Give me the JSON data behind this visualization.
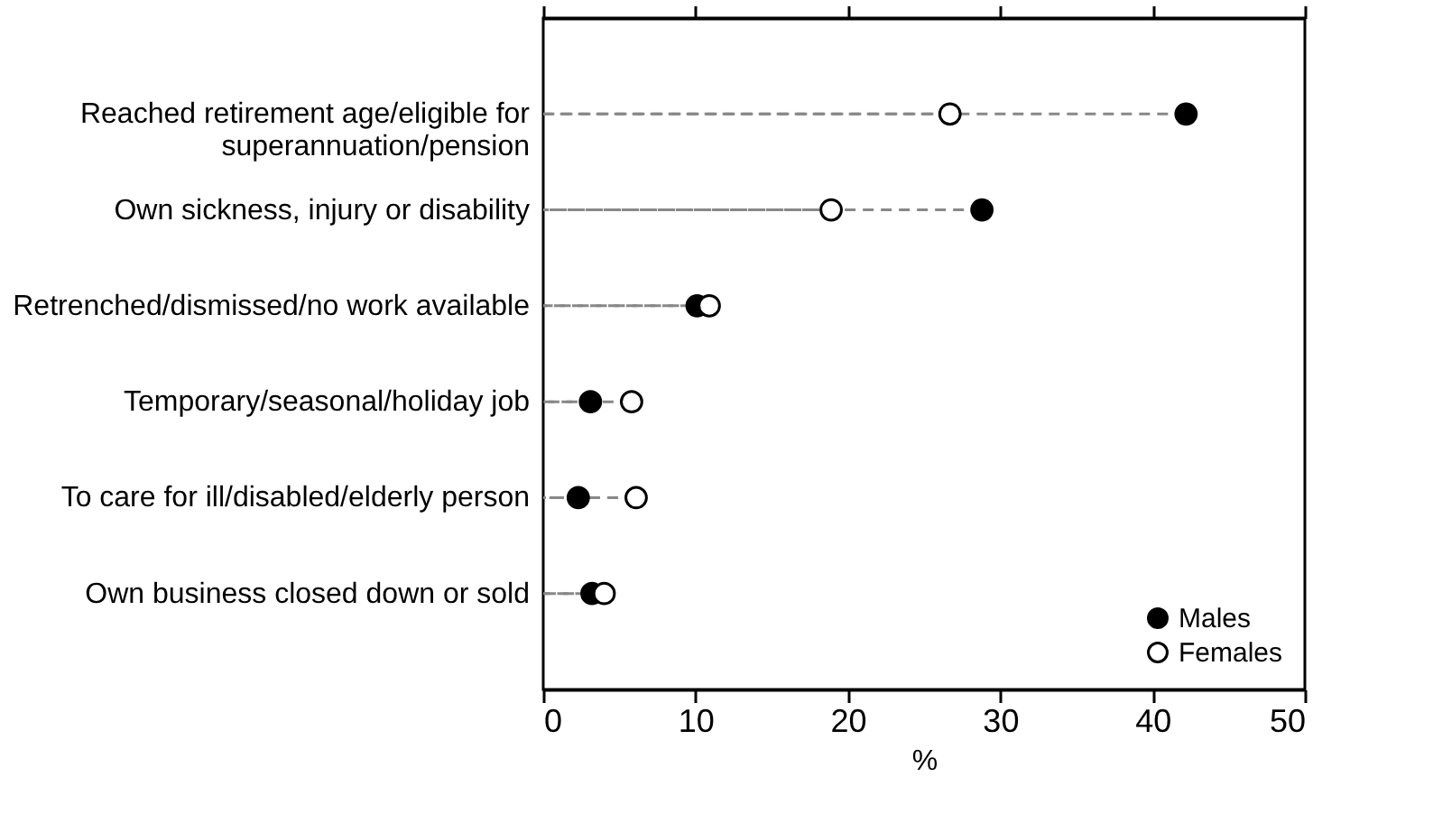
{
  "chart_data": {
    "type": "lollipop",
    "orientation": "horizontal",
    "xlabel": "%",
    "categories": [
      "Reached retirement age/eligible for superannuation/pension",
      "Own sickness, injury or disability",
      "Retrenched/dismissed/no work available",
      "Temporary/seasonal/holiday job",
      "To care for ill/disabled/elderly person",
      "Own business closed down or sold"
    ],
    "series": [
      {
        "name": "Males",
        "color": "#000000",
        "values": [
          42.2,
          28.8,
          10.1,
          3.1,
          2.3,
          3.2
        ]
      },
      {
        "name": "Females",
        "color": "#ffffff",
        "values": [
          26.7,
          18.9,
          10.9,
          5.8,
          6.1,
          4.0
        ]
      }
    ],
    "xlim": [
      0,
      50
    ],
    "xticks": [
      0,
      10,
      20,
      30,
      40,
      50
    ],
    "line_style": "dashed",
    "marker": "circle",
    "legend": "bottom right"
  }
}
